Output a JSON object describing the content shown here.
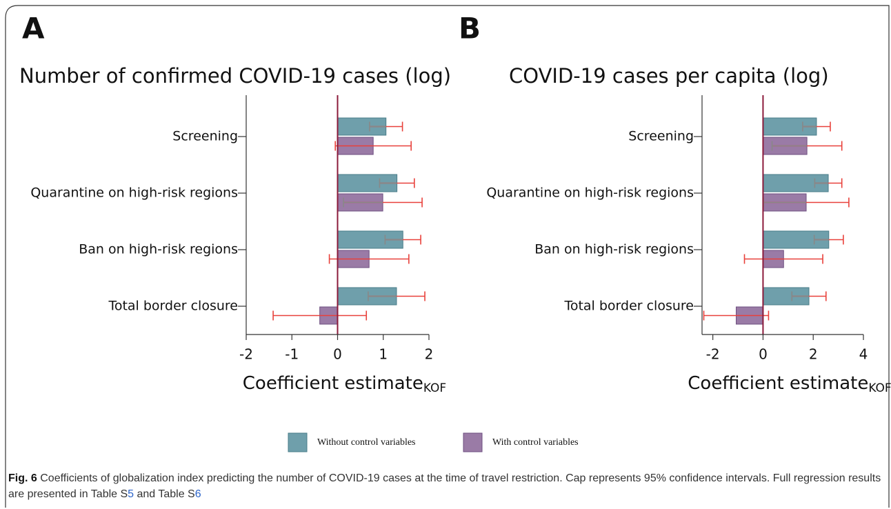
{
  "chart_data": [
    {
      "type": "bar",
      "orientation": "horizontal",
      "panel": "A",
      "title": "Number of confirmed COVID-19 cases (log)",
      "xlabel": "Coefficient estimate",
      "xlabel_subscript": "KOF",
      "categories": [
        "Screening",
        "Quarantine on high-risk regions",
        "Ban on high-risk regions",
        "Total border closure"
      ],
      "series": [
        {
          "name": "Without control variables",
          "color": "#6f9fab",
          "values": [
            1.06,
            1.3,
            1.43,
            1.29
          ],
          "errors": [
            0.36,
            0.38,
            0.39,
            0.62
          ]
        },
        {
          "name": "With control variables",
          "color": "#9a7ba6",
          "values": [
            0.78,
            0.99,
            0.69,
            -0.39
          ],
          "errors": [
            0.83,
            0.86,
            0.87,
            1.02
          ]
        }
      ],
      "xlim": [
        -2,
        2
      ],
      "xticks": [
        -2,
        -1,
        0,
        1,
        2
      ]
    },
    {
      "type": "bar",
      "orientation": "horizontal",
      "panel": "B",
      "title": "COVID-19 cases per capita (log)",
      "xlabel": "Coefficient estimate",
      "xlabel_subscript": "KOF",
      "categories": [
        "Screening",
        "Quarantine on high-risk regions",
        "Ban on high-risk regions",
        "Total border closure"
      ],
      "series": [
        {
          "name": "Without control variables",
          "color": "#6f9fab",
          "values": [
            2.13,
            2.6,
            2.62,
            1.83
          ],
          "errors": [
            0.55,
            0.54,
            0.58,
            0.68
          ]
        },
        {
          "name": "With control variables",
          "color": "#9a7ba6",
          "values": [
            1.75,
            1.72,
            0.82,
            -1.07
          ],
          "errors": [
            1.39,
            1.7,
            1.56,
            1.29
          ]
        }
      ],
      "xlim": [
        -2.43,
        4
      ],
      "xticks": [
        -2,
        0,
        2,
        4
      ]
    }
  ],
  "caption": {
    "label": "Fig. 6",
    "parts": [
      "Coefficients of globalization index predicting the number of COVID-19 cases at the time of travel restriction. Cap represents 95% confidence intervals. Full regression results are presented in Table S",
      "5",
      " and Table S",
      "6"
    ]
  }
}
